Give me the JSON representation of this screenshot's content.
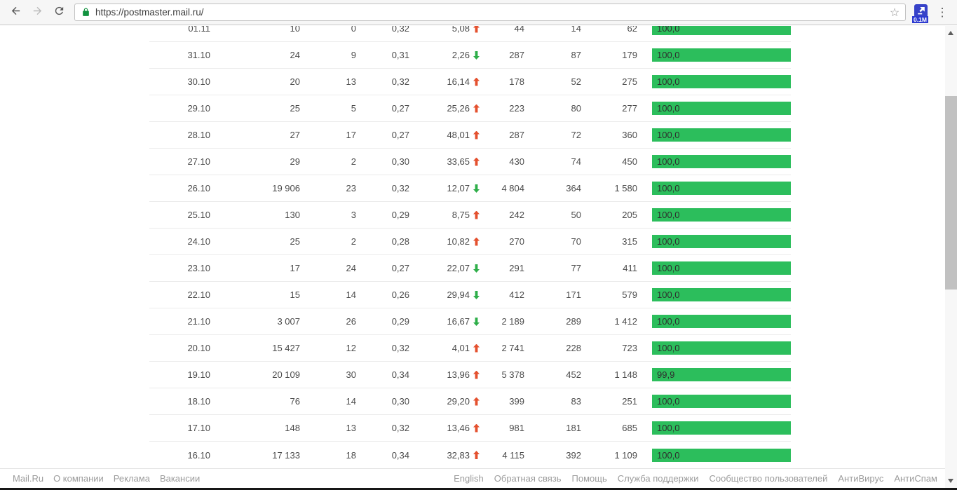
{
  "browser": {
    "url": "https://postmaster.mail.ru/",
    "extension_badge": "0.1M",
    "icons": {
      "back": "arrow-left",
      "forward": "arrow-right",
      "reload": "refresh",
      "lock": "green-padlock",
      "star": "bookmark-star-outline",
      "extension": "blue-arrow-box",
      "menu": "vertical-three-dots"
    }
  },
  "colors": {
    "bar_green": "#2cbe5c",
    "arrow_up_red": "#e4502e",
    "arrow_down_green": "#2eae49",
    "badge_blue": "#2e3bd0"
  },
  "table": {
    "rows": [
      {
        "date": "01.11",
        "v1": "10",
        "v2": "0",
        "v3": "0,32",
        "change": "5,08",
        "trend": "up",
        "v4": "44",
        "v5": "14",
        "v6": "62",
        "rate": "100,0",
        "rate_num": 100.0
      },
      {
        "date": "31.10",
        "v1": "24",
        "v2": "9",
        "v3": "0,31",
        "change": "2,26",
        "trend": "down",
        "v4": "287",
        "v5": "87",
        "v6": "179",
        "rate": "100,0",
        "rate_num": 100.0
      },
      {
        "date": "30.10",
        "v1": "20",
        "v2": "13",
        "v3": "0,32",
        "change": "16,14",
        "trend": "up",
        "v4": "178",
        "v5": "52",
        "v6": "275",
        "rate": "100,0",
        "rate_num": 100.0
      },
      {
        "date": "29.10",
        "v1": "25",
        "v2": "5",
        "v3": "0,27",
        "change": "25,26",
        "trend": "up",
        "v4": "223",
        "v5": "80",
        "v6": "277",
        "rate": "100,0",
        "rate_num": 100.0
      },
      {
        "date": "28.10",
        "v1": "27",
        "v2": "17",
        "v3": "0,27",
        "change": "48,01",
        "trend": "up",
        "v4": "287",
        "v5": "72",
        "v6": "360",
        "rate": "100,0",
        "rate_num": 100.0
      },
      {
        "date": "27.10",
        "v1": "29",
        "v2": "2",
        "v3": "0,30",
        "change": "33,65",
        "trend": "up",
        "v4": "430",
        "v5": "74",
        "v6": "450",
        "rate": "100,0",
        "rate_num": 100.0
      },
      {
        "date": "26.10",
        "v1": "19 906",
        "v2": "23",
        "v3": "0,32",
        "change": "12,07",
        "trend": "down",
        "v4": "4 804",
        "v5": "364",
        "v6": "1 580",
        "rate": "100,0",
        "rate_num": 100.0
      },
      {
        "date": "25.10",
        "v1": "130",
        "v2": "3",
        "v3": "0,29",
        "change": "8,75",
        "trend": "up",
        "v4": "242",
        "v5": "50",
        "v6": "205",
        "rate": "100,0",
        "rate_num": 100.0
      },
      {
        "date": "24.10",
        "v1": "25",
        "v2": "2",
        "v3": "0,28",
        "change": "10,82",
        "trend": "up",
        "v4": "270",
        "v5": "70",
        "v6": "315",
        "rate": "100,0",
        "rate_num": 100.0
      },
      {
        "date": "23.10",
        "v1": "17",
        "v2": "24",
        "v3": "0,27",
        "change": "22,07",
        "trend": "down",
        "v4": "291",
        "v5": "77",
        "v6": "411",
        "rate": "100,0",
        "rate_num": 100.0
      },
      {
        "date": "22.10",
        "v1": "15",
        "v2": "14",
        "v3": "0,26",
        "change": "29,94",
        "trend": "down",
        "v4": "412",
        "v5": "171",
        "v6": "579",
        "rate": "100,0",
        "rate_num": 100.0
      },
      {
        "date": "21.10",
        "v1": "3 007",
        "v2": "26",
        "v3": "0,29",
        "change": "16,67",
        "trend": "down",
        "v4": "2 189",
        "v5": "289",
        "v6": "1 412",
        "rate": "100,0",
        "rate_num": 100.0
      },
      {
        "date": "20.10",
        "v1": "15 427",
        "v2": "12",
        "v3": "0,32",
        "change": "4,01",
        "trend": "up",
        "v4": "2 741",
        "v5": "228",
        "v6": "723",
        "rate": "100,0",
        "rate_num": 100.0
      },
      {
        "date": "19.10",
        "v1": "20 109",
        "v2": "30",
        "v3": "0,34",
        "change": "13,96",
        "trend": "up",
        "v4": "5 378",
        "v5": "452",
        "v6": "1 148",
        "rate": "99,9",
        "rate_num": 99.9
      },
      {
        "date": "18.10",
        "v1": "76",
        "v2": "14",
        "v3": "0,30",
        "change": "29,20",
        "trend": "up",
        "v4": "399",
        "v5": "83",
        "v6": "251",
        "rate": "100,0",
        "rate_num": 100.0
      },
      {
        "date": "17.10",
        "v1": "148",
        "v2": "13",
        "v3": "0,32",
        "change": "13,46",
        "trend": "up",
        "v4": "981",
        "v5": "181",
        "v6": "685",
        "rate": "100,0",
        "rate_num": 100.0
      },
      {
        "date": "16.10",
        "v1": "17 133",
        "v2": "18",
        "v3": "0,34",
        "change": "32,83",
        "trend": "up",
        "v4": "4 115",
        "v5": "392",
        "v6": "1 109",
        "rate": "100,0",
        "rate_num": 100.0
      }
    ]
  },
  "footer": {
    "left_links": [
      "Mail.Ru",
      "О компании",
      "Реклама",
      "Вакансии"
    ],
    "right_links": [
      "English",
      "Обратная связь",
      "Помощь",
      "Служба поддержки",
      "Сообщество пользователей",
      "АнтиВирус",
      "АнтиСпам"
    ]
  }
}
